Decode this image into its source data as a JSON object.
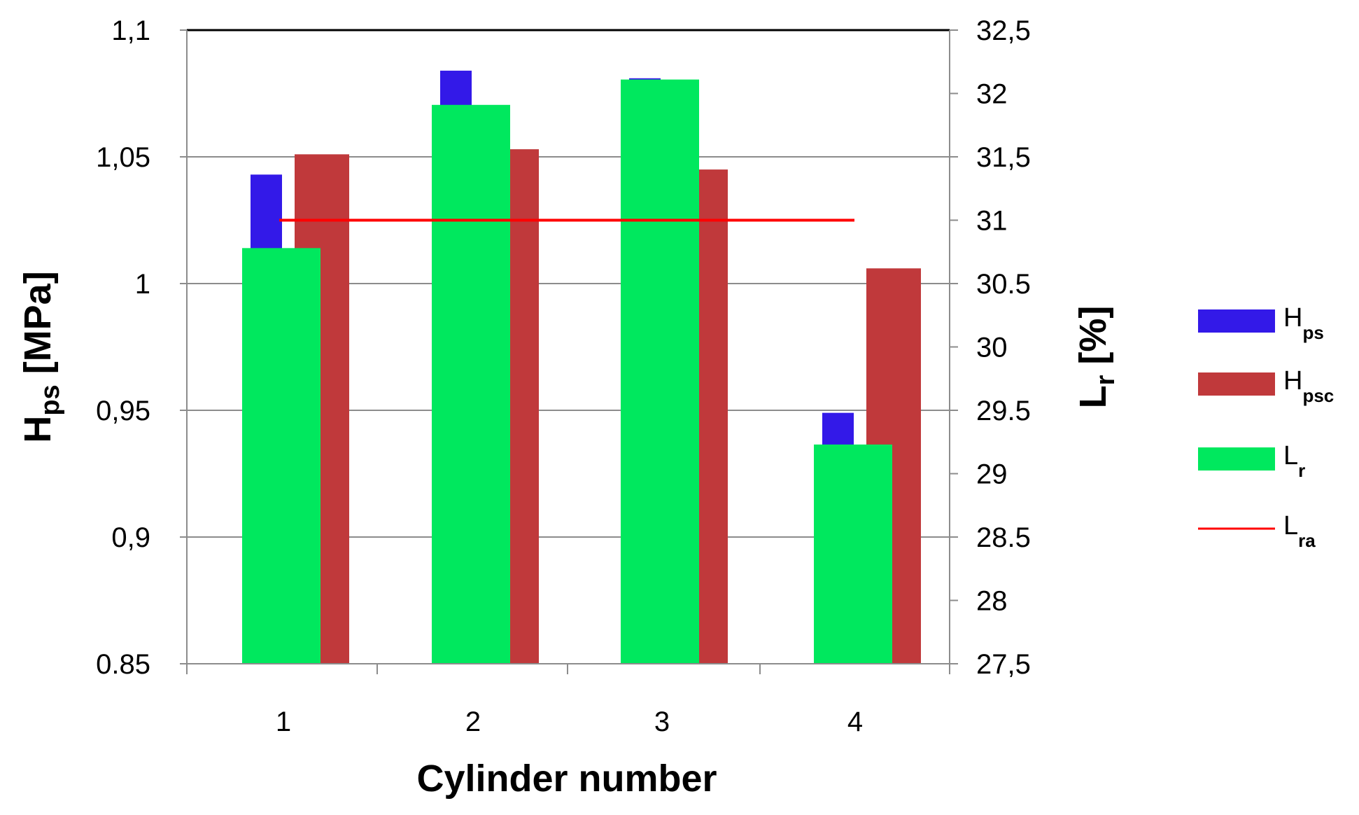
{
  "chart_data": {
    "type": "bar",
    "categories": [
      "1",
      "2",
      "3",
      "4"
    ],
    "xlabel": "Cylinder number",
    "ylabel_left": {
      "main": "H",
      "sub": "ps",
      "unit": " [MPa]"
    },
    "ylabel_right": {
      "main": "L",
      "sub": "r",
      "unit": " [%]"
    },
    "yleft": {
      "lim": [
        0.85,
        1.1
      ],
      "ticks": [
        0.85,
        0.9,
        0.95,
        1.0,
        1.05,
        1.1
      ],
      "tick_labels": [
        "0.85",
        "0,9",
        "0,95",
        "1",
        "1,05",
        "1,1"
      ]
    },
    "yright": {
      "lim": [
        27.5,
        32.5
      ],
      "ticks": [
        27.5,
        28,
        28.5,
        29,
        29.5,
        30,
        30.5,
        31,
        31.5,
        32,
        32.5
      ],
      "tick_labels": [
        "27,5",
        "28",
        "28.5",
        "29",
        "29.5",
        "30",
        "30.5",
        "31",
        "31,5",
        "32",
        "32,5"
      ]
    },
    "series": [
      {
        "key": "hps",
        "name": {
          "main": "H",
          "sub": "ps"
        },
        "axis": "left",
        "kind": "bar",
        "color": "#3319e8",
        "values": [
          1.043,
          1.084,
          1.081,
          0.949
        ]
      },
      {
        "key": "hpsc",
        "name": {
          "main": "H",
          "sub": "psc"
        },
        "axis": "left",
        "kind": "bar",
        "color": "#c0393b",
        "values": [
          1.051,
          1.053,
          1.045,
          1.006
        ]
      },
      {
        "key": "lr",
        "name": {
          "main": "L",
          "sub": "r"
        },
        "axis": "right",
        "kind": "bar",
        "color": "#00e85e",
        "values": [
          30.78,
          31.91,
          32.11,
          29.23
        ]
      },
      {
        "key": "lra",
        "name": {
          "main": "L",
          "sub": "ra"
        },
        "axis": "right",
        "kind": "line",
        "color": "#ff0000",
        "values": [
          31.0,
          31.0,
          31.0,
          31.0
        ]
      }
    ],
    "grid": true,
    "legend_position": "right"
  }
}
